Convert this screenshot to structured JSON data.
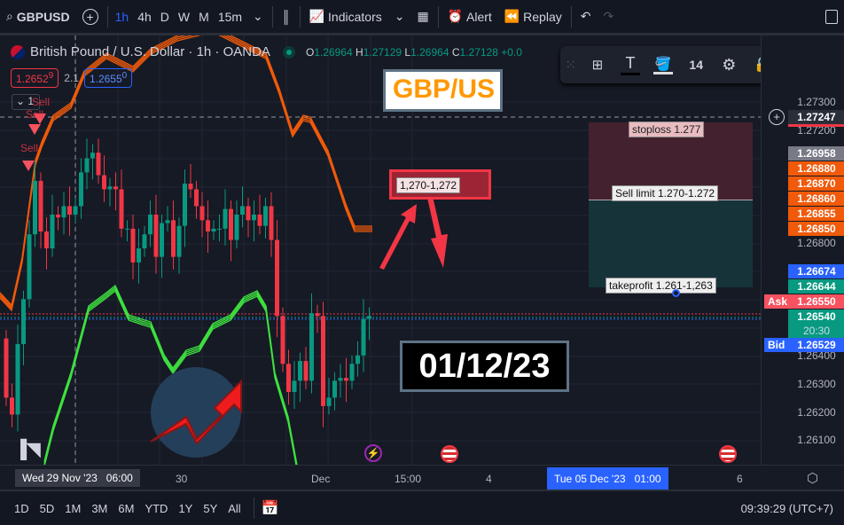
{
  "toolbar": {
    "symbol": "GBPUSD",
    "intervals": [
      "1h",
      "4h",
      "D",
      "W",
      "M",
      "15m"
    ],
    "active_interval": "1h",
    "indicators": "Indicators",
    "alert": "Alert",
    "replay": "Replay"
  },
  "legend": {
    "title": "British Pound / U.S. Dollar · 1h · OANDA",
    "o_label": "O",
    "o": "1.26964",
    "h_label": "H",
    "h": "1.27129",
    "l_label": "L",
    "l": "1.26964",
    "c_label": "C",
    "c": "1.27128",
    "change": "+0.0",
    "bid": "1.2652",
    "bid_sup": "9",
    "spread": "2.1",
    "ask": "1.2655",
    "ask_sup": "0",
    "collapse_count": "1"
  },
  "drawing_toolbar": {
    "font_size": "14"
  },
  "annotations": {
    "pair_label": "GBP/US",
    "zone_label": "1,270-1,272",
    "date_label": "01/12/23",
    "stoploss": "stoploss 1.277",
    "sell_limit": "Sell limit 1.270-1.272",
    "takeprofit": "takeprofit 1.261-1,263",
    "sell_signals": [
      "Sell",
      "Sell",
      "Sell"
    ]
  },
  "price_axis": {
    "ticks": [
      "1.27300",
      "1.27200",
      "1.26800",
      "1.26400",
      "1.26300",
      "1.26200",
      "1.26100"
    ],
    "labels": [
      {
        "text": "1.27247",
        "color": "#2a2e39"
      },
      {
        "text": "1.26958",
        "color": "#787b86"
      },
      {
        "text": "1.26880",
        "color": "#f05a0a"
      },
      {
        "text": "1.26870",
        "color": "#f05a0a"
      },
      {
        "text": "1.26860",
        "color": "#f05a0a"
      },
      {
        "text": "1.26855",
        "color": "#f05a0a"
      },
      {
        "text": "1.26850",
        "color": "#f05a0a"
      },
      {
        "text": "1.26674",
        "color": "#2962ff"
      },
      {
        "text": "1.26644",
        "color": "#089981"
      },
      {
        "text": "1.26550",
        "color": "#f23645"
      },
      {
        "text": "1.26540",
        "color": "#089981"
      },
      {
        "text": "1.26529",
        "color": "#2962ff"
      }
    ],
    "countdown": "20:30",
    "ask_tag": "Ask",
    "bid_tag": "Bid"
  },
  "time_axis": {
    "cursor_left": "Wed 29 Nov '23   06:00",
    "ticks": [
      "30",
      "Dec",
      "15:00",
      "4",
      "6"
    ],
    "cursor_right": "Tue 05 Dec '23   01:00"
  },
  "bottom": {
    "ranges": [
      "1D",
      "5D",
      "1M",
      "3M",
      "6M",
      "YTD",
      "1Y",
      "5Y",
      "All"
    ],
    "clock": "09:39:29 (UTC+7)"
  },
  "candles": {
    "first_open": 1.2646,
    "closes": [
      1.2625,
      1.2619,
      1.2644,
      1.266,
      1.2683,
      1.2702,
      1.2684,
      1.2678,
      1.269,
      1.2689,
      1.2693,
      1.269,
      1.2693,
      1.2705,
      1.271,
      1.2712,
      1.2704,
      1.2699,
      1.27,
      1.2699,
      1.2685,
      1.2685,
      1.2673,
      1.2678,
      1.2683,
      1.269,
      1.2675,
      1.2687,
      1.2688,
      1.2675,
      1.2686,
      1.2701,
      1.2699,
      1.2693,
      1.2688,
      1.2684,
      1.2685,
      1.2685,
      1.2692,
      1.2681,
      1.269,
      1.2693,
      1.2688,
      1.269,
      1.2686,
      1.2693,
      1.2681,
      1.2654,
      1.2637,
      1.2627,
      1.2631,
      1.2638,
      1.2631,
      1.2655,
      1.2654,
      1.2622,
      1.2625,
      1.2631,
      1.2632,
      1.2631,
      1.2637,
      1.264,
      1.2653,
      1.2654
    ],
    "up_color": "#089981",
    "down_color": "#f23645"
  },
  "colors": {
    "orange_band": "#f05a0a",
    "green_band": "#3ee03e",
    "accent": "#2962ff"
  }
}
